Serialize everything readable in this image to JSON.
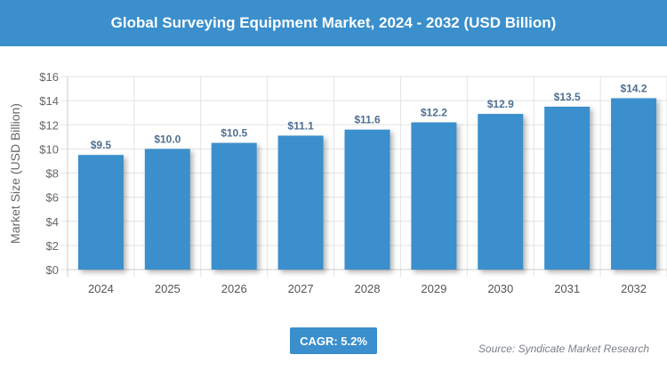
{
  "header": {
    "title": "Global Surveying Equipment Market, 2024 - 2032 (USD Billion)"
  },
  "footer": {
    "cagr": "CAGR: 5.2%",
    "source": "Source: Syndicate Market Research"
  },
  "colors": {
    "bar": "#3a8fcc",
    "header": "#3a8fcc",
    "label": "#4f6f92"
  },
  "chart_data": {
    "type": "bar",
    "title": "Global Surveying Equipment Market, 2024 - 2032 (USD Billion)",
    "ylabel": "Market Size (USD Billion)",
    "xlabel": "",
    "categories": [
      "2024",
      "2025",
      "2026",
      "2027",
      "2028",
      "2029",
      "2030",
      "2031",
      "2032"
    ],
    "values": [
      9.5,
      10.0,
      10.5,
      11.1,
      11.6,
      12.2,
      12.9,
      13.5,
      14.2
    ],
    "data_labels": [
      "$9.5",
      "$10.0",
      "$10.5",
      "$11.1",
      "$11.6",
      "$12.2",
      "$12.9",
      "$13.5",
      "$14.2"
    ],
    "ylim": [
      0,
      16
    ],
    "yticks": [
      0,
      2,
      4,
      6,
      8,
      10,
      12,
      14,
      16
    ],
    "ytick_labels": [
      "$0",
      "$2",
      "$4",
      "$6",
      "$8",
      "$10",
      "$12",
      "$14",
      "$16"
    ],
    "grid": true
  }
}
